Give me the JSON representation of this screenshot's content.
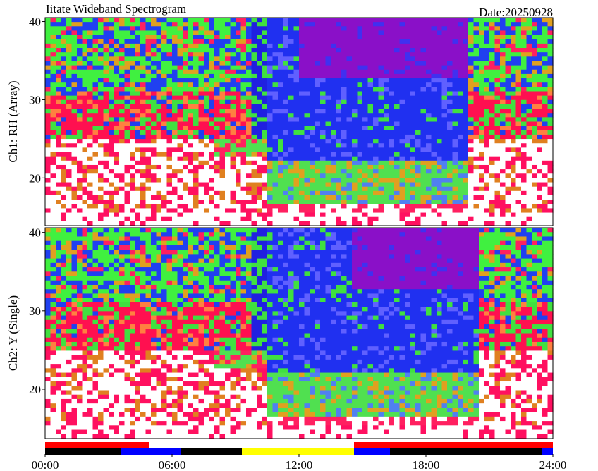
{
  "chart_data": [
    {
      "type": "spectrogram",
      "title": "Iitate Wideband Spectrogram",
      "subtitle": "Date:20250928",
      "ylabel": "Ch1: RH (Array)",
      "ylim": [
        13.9,
        40.5
      ],
      "yticks": [
        20,
        30,
        40
      ],
      "xlim": [
        0,
        24
      ]
    },
    {
      "type": "spectrogram",
      "ylabel": "Ch2: Y (Single)",
      "ylim": [
        13.7,
        40.6
      ],
      "yticks": [
        20,
        30,
        40
      ],
      "xlim": [
        0,
        24
      ],
      "xticks": [
        {
          "value": 0,
          "label": "00:00"
        },
        {
          "value": 6,
          "label": "06:00"
        },
        {
          "value": 12,
          "label": "12:00"
        },
        {
          "value": 18,
          "label": "18:00"
        },
        {
          "value": 24,
          "label": "24:00"
        }
      ],
      "status_bars": [
        [
          {
            "start": 0,
            "end": 4.9,
            "color": "#ff0000"
          },
          {
            "start": 4.9,
            "end": 14.6,
            "color": "#ffffff"
          },
          {
            "start": 14.6,
            "end": 24,
            "color": "#ff0000"
          }
        ],
        [
          {
            "start": 0,
            "end": 3.6,
            "color": "#000000"
          },
          {
            "start": 3.6,
            "end": 6.4,
            "color": "#0000ff"
          },
          {
            "start": 6.4,
            "end": 9.3,
            "color": "#000000"
          },
          {
            "start": 9.3,
            "end": 14.6,
            "color": "#ffff00"
          },
          {
            "start": 14.6,
            "end": 16.3,
            "color": "#0000ff"
          },
          {
            "start": 16.3,
            "end": 23.5,
            "color": "#000000"
          },
          {
            "start": 23.5,
            "end": 24,
            "color": "#0000ff"
          }
        ]
      ]
    }
  ]
}
